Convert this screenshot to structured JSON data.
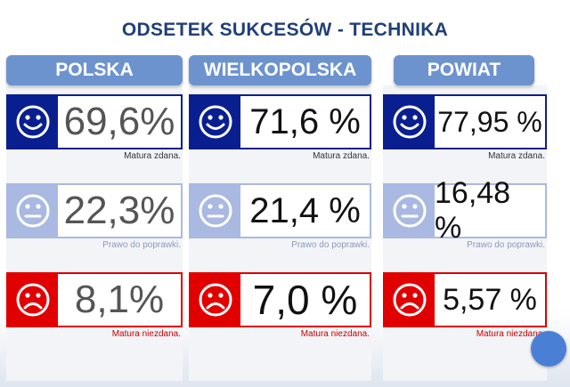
{
  "title": "ODSETEK SUKCESÓW - TECHNIKA",
  "colors": {
    "header": "#6d93cf",
    "pass": "#0a1f8f",
    "retake": "#a9b9e2",
    "fail": "#e10000",
    "title": "#1f3f78"
  },
  "columns": [
    {
      "header": "POLSKA",
      "rows": [
        {
          "value": "69,6%",
          "caption": "Matura zdana.",
          "icon": "happy-face-icon"
        },
        {
          "value": "22,3%",
          "caption": "Prawo do poprawki.",
          "icon": "neutral-face-icon"
        },
        {
          "value": "8,1%",
          "caption": "Matura niezdana.",
          "icon": "sad-face-icon"
        }
      ]
    },
    {
      "header": "WIELKOPOLSKA",
      "rows": [
        {
          "value": "71,6 %",
          "caption": "Matura zdana.",
          "icon": "happy-face-icon"
        },
        {
          "value": "21,4 %",
          "caption": "Prawo do poprawki.",
          "icon": "neutral-face-icon"
        },
        {
          "value": "7,0 %",
          "caption": "Matura niezdana.",
          "icon": "sad-face-icon"
        }
      ]
    },
    {
      "header": "POWIAT",
      "rows": [
        {
          "value": "77,95 %",
          "caption": "Matura zdana.",
          "icon": "happy-face-icon"
        },
        {
          "value": "16,48 %",
          "caption": "Prawo do poprawki.",
          "icon": "neutral-face-icon"
        },
        {
          "value": "5,57 %",
          "caption": "Matura niezdana.",
          "icon": "sad-face-icon"
        }
      ]
    }
  ]
}
